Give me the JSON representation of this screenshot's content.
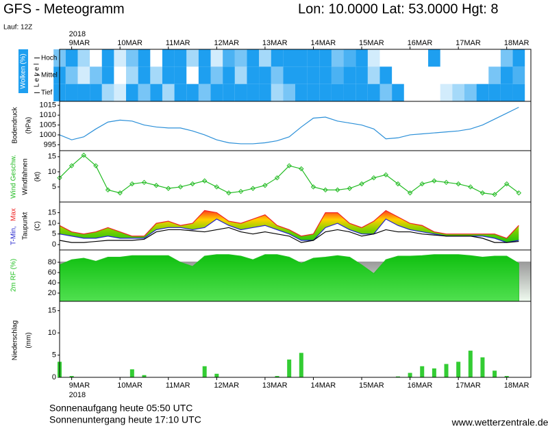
{
  "header": {
    "title": "GFS - Meteogramm",
    "location": "Lon: 10.0000 Lat: 53.0000 Hgt: 8",
    "run": "Lauf: 12Z"
  },
  "footer": {
    "sunrise": "Sonnenaufgang heute 05:50 UTC",
    "sunset": "Sonnenuntergang heute 17:10 UTC",
    "source": "www.wetterzentrale.de"
  },
  "chart_data": [
    {
      "type": "heatmap",
      "ylabel": "Wolken (%)",
      "ylabel2": "L e v e l",
      "color": "#1e9ff0",
      "xlabel": "2018",
      "xlim": [
        0,
        234
      ],
      "xticks": [
        {
          "value": 6,
          "label": "9MAR"
        },
        {
          "value": 30,
          "label": "10MAR"
        },
        {
          "value": 54,
          "label": "11MAR"
        },
        {
          "value": 78,
          "label": "12MAR"
        },
        {
          "value": 102,
          "label": "13MAR"
        },
        {
          "value": 126,
          "label": "14MAR"
        },
        {
          "value": 150,
          "label": "15MAR"
        },
        {
          "value": 174,
          "label": "16MAR"
        },
        {
          "value": 198,
          "label": "17MAR"
        },
        {
          "value": 222,
          "label": "18MAR"
        }
      ],
      "x": [
        0,
        6,
        12,
        18,
        24,
        30,
        36,
        42,
        48,
        54,
        60,
        66,
        72,
        78,
        84,
        90,
        96,
        102,
        108,
        114,
        120,
        126,
        132,
        138,
        144,
        150,
        156,
        162,
        168,
        174,
        180,
        186,
        192,
        198,
        204,
        210,
        216,
        222,
        228
      ],
      "series": [
        {
          "name": "Hoch",
          "values": [
            60,
            100,
            40,
            0,
            100,
            20,
            60,
            100,
            0,
            100,
            100,
            40,
            100,
            20,
            80,
            60,
            100,
            40,
            100,
            100,
            100,
            100,
            100,
            60,
            80,
            100,
            20,
            0,
            0,
            0,
            0,
            100,
            0,
            0,
            0,
            0,
            0,
            60,
            100
          ]
        },
        {
          "name": "Mittel",
          "values": [
            100,
            60,
            20,
            60,
            100,
            0,
            40,
            100,
            40,
            100,
            100,
            0,
            100,
            60,
            100,
            40,
            100,
            100,
            60,
            100,
            100,
            100,
            100,
            80,
            100,
            100,
            40,
            100,
            0,
            0,
            0,
            0,
            0,
            0,
            0,
            0,
            60,
            100,
            80
          ]
        },
        {
          "name": "Tief",
          "values": [
            100,
            100,
            100,
            100,
            40,
            20,
            100,
            60,
            100,
            40,
            100,
            100,
            60,
            100,
            100,
            100,
            100,
            100,
            40,
            60,
            100,
            100,
            100,
            100,
            100,
            100,
            100,
            60,
            100,
            0,
            0,
            0,
            20,
            40,
            60,
            100,
            100,
            100,
            100
          ]
        }
      ]
    },
    {
      "type": "line",
      "ylabel": "Bodendruck",
      "unit": "(hPa)",
      "xlim": [
        0,
        234
      ],
      "ylim": [
        992,
        1017
      ],
      "yticks": [
        995,
        1000,
        1005,
        1010,
        1015
      ],
      "x": [
        0,
        6,
        12,
        18,
        24,
        30,
        36,
        42,
        48,
        54,
        60,
        66,
        72,
        78,
        84,
        90,
        96,
        102,
        108,
        114,
        120,
        126,
        132,
        138,
        144,
        150,
        156,
        162,
        168,
        174,
        180,
        186,
        192,
        198,
        204,
        210,
        216,
        222,
        228
      ],
      "series": [
        {
          "color": "#2a8fd8",
          "values": [
            1000,
            997.5,
            999,
            1003,
            1006.5,
            1007.5,
            1007,
            1005,
            1004,
            1003.5,
            1003.5,
            1002,
            1000,
            997.5,
            996,
            995.5,
            995.5,
            996,
            997,
            999,
            1004,
            1008.5,
            1009,
            1007,
            1006,
            1005,
            1003,
            998,
            998.5,
            1000,
            1000.5,
            1001,
            1001.5,
            1002,
            1003,
            1005,
            1008,
            1011,
            1014
          ]
        }
      ]
    },
    {
      "type": "line",
      "ylabel": "Windfahnen",
      "unit": "(kt)",
      "xlim": [
        0,
        234
      ],
      "ylim": [
        0,
        17
      ],
      "yticks": [
        5,
        10,
        15
      ],
      "x": [
        0,
        6,
        12,
        18,
        24,
        30,
        36,
        42,
        48,
        54,
        60,
        66,
        72,
        78,
        84,
        90,
        96,
        102,
        108,
        114,
        120,
        126,
        132,
        138,
        144,
        150,
        156,
        162,
        168,
        174,
        180,
        186,
        192,
        198,
        204,
        210,
        216,
        222,
        228
      ],
      "series": [
        {
          "name": "Wind Geschw.",
          "color": "#22bb22",
          "markers": true,
          "values": [
            8,
            12,
            15.5,
            12,
            4,
            3,
            6,
            6.5,
            5.5,
            4.5,
            5,
            6,
            7,
            5,
            3,
            3.5,
            4.5,
            5.5,
            8,
            12,
            11,
            5,
            4,
            4,
            4.5,
            6,
            8,
            9,
            6,
            3,
            6,
            7,
            6.5,
            6,
            5,
            3,
            2.5,
            6,
            3
          ]
        }
      ]
    },
    {
      "type": "line",
      "unit": "(C)",
      "xlim": [
        0,
        234
      ],
      "ylim": [
        -2.5,
        20
      ],
      "yticks": [
        0,
        5,
        10,
        15
      ],
      "fill_between": [
        0,
        1
      ],
      "x": [
        0,
        6,
        12,
        18,
        24,
        30,
        36,
        42,
        48,
        54,
        60,
        66,
        72,
        78,
        84,
        90,
        96,
        102,
        108,
        114,
        120,
        126,
        132,
        138,
        144,
        150,
        156,
        162,
        168,
        174,
        180,
        186,
        192,
        198,
        204,
        210,
        216,
        222,
        228
      ],
      "series": [
        {
          "name": "Max",
          "color": "#ee2222",
          "values": [
            9,
            6,
            5,
            6,
            8,
            6,
            4,
            4,
            10,
            11,
            9,
            10,
            16,
            15,
            11,
            10,
            12,
            14,
            9,
            7,
            4,
            5,
            15,
            15,
            10,
            8,
            11,
            16,
            13,
            10,
            9,
            6,
            5,
            5,
            5,
            5,
            5,
            3,
            9
          ]
        },
        {
          "name": "T-Min,",
          "color": "#2222cc",
          "values": [
            5,
            4,
            3,
            3,
            4,
            3,
            3,
            3,
            7,
            8,
            8,
            7,
            8,
            12,
            9,
            7,
            8,
            9,
            7,
            5,
            2,
            2,
            8,
            10,
            7,
            5,
            5,
            12,
            9,
            7,
            6,
            5,
            4,
            4,
            4,
            4,
            3,
            1,
            2
          ]
        },
        {
          "name": "Taupunkt",
          "color": "#000000",
          "values": [
            2,
            1,
            1,
            1.5,
            2,
            2,
            2,
            2.5,
            6,
            7,
            7,
            6.5,
            6,
            7,
            8,
            6,
            5,
            6,
            5,
            4,
            1,
            2,
            6,
            7,
            6,
            4,
            5,
            7,
            6,
            6,
            5,
            4.5,
            4,
            4,
            4,
            3,
            1,
            1,
            1.5
          ]
        }
      ]
    },
    {
      "type": "area",
      "ylabel": "2m RF (%)",
      "color": "#22c022",
      "xlim": [
        0,
        234
      ],
      "ylim": [
        4,
        104
      ],
      "yticks": [
        20,
        40,
        60,
        80
      ],
      "x": [
        0,
        6,
        12,
        18,
        24,
        30,
        36,
        42,
        48,
        54,
        60,
        66,
        72,
        78,
        84,
        90,
        96,
        102,
        108,
        114,
        120,
        126,
        132,
        138,
        144,
        150,
        156,
        162,
        168,
        174,
        180,
        186,
        192,
        198,
        204,
        210,
        216,
        222,
        228
      ],
      "values": [
        75,
        85,
        88,
        82,
        90,
        90,
        93,
        93,
        93,
        93,
        80,
        72,
        92,
        95,
        95,
        92,
        85,
        95,
        95,
        90,
        78,
        88,
        90,
        93,
        90,
        75,
        58,
        85,
        92,
        92,
        93,
        95,
        95,
        95,
        93,
        90,
        92,
        92,
        78
      ]
    },
    {
      "type": "bar",
      "ylabel": "Niederschlag",
      "unit": "(mm)",
      "color": "#33cc33",
      "xlim": [
        0,
        234
      ],
      "ylim": [
        0,
        17.1
      ],
      "yticks": [
        0,
        5,
        10,
        15
      ],
      "xlabel": "2018",
      "xticks": [
        {
          "value": 6,
          "label": "9MAR"
        },
        {
          "value": 30,
          "label": "10MAR"
        },
        {
          "value": 54,
          "label": "11MAR"
        },
        {
          "value": 78,
          "label": "12MAR"
        },
        {
          "value": 102,
          "label": "13MAR"
        },
        {
          "value": 126,
          "label": "14MAR"
        },
        {
          "value": 150,
          "label": "15MAR"
        },
        {
          "value": 174,
          "label": "16MAR"
        },
        {
          "value": 198,
          "label": "17MAR"
        },
        {
          "value": 222,
          "label": "18MAR"
        }
      ],
      "x": [
        0,
        6,
        12,
        18,
        24,
        30,
        36,
        42,
        48,
        54,
        60,
        66,
        72,
        78,
        84,
        90,
        96,
        102,
        108,
        114,
        120,
        126,
        132,
        138,
        144,
        150,
        156,
        162,
        168,
        174,
        180,
        186,
        192,
        198,
        204,
        210,
        216,
        222,
        228
      ],
      "values": [
        3.5,
        0.3,
        0,
        0,
        0,
        0,
        1.8,
        0.5,
        0,
        0,
        0,
        0,
        2.5,
        0.8,
        0,
        0,
        0,
        0,
        0.3,
        4,
        5.5,
        0,
        0,
        0,
        0,
        0,
        0,
        0,
        0.2,
        1,
        2.5,
        2,
        3,
        3.5,
        6,
        4.5,
        1.5,
        0.3,
        0
      ]
    }
  ]
}
